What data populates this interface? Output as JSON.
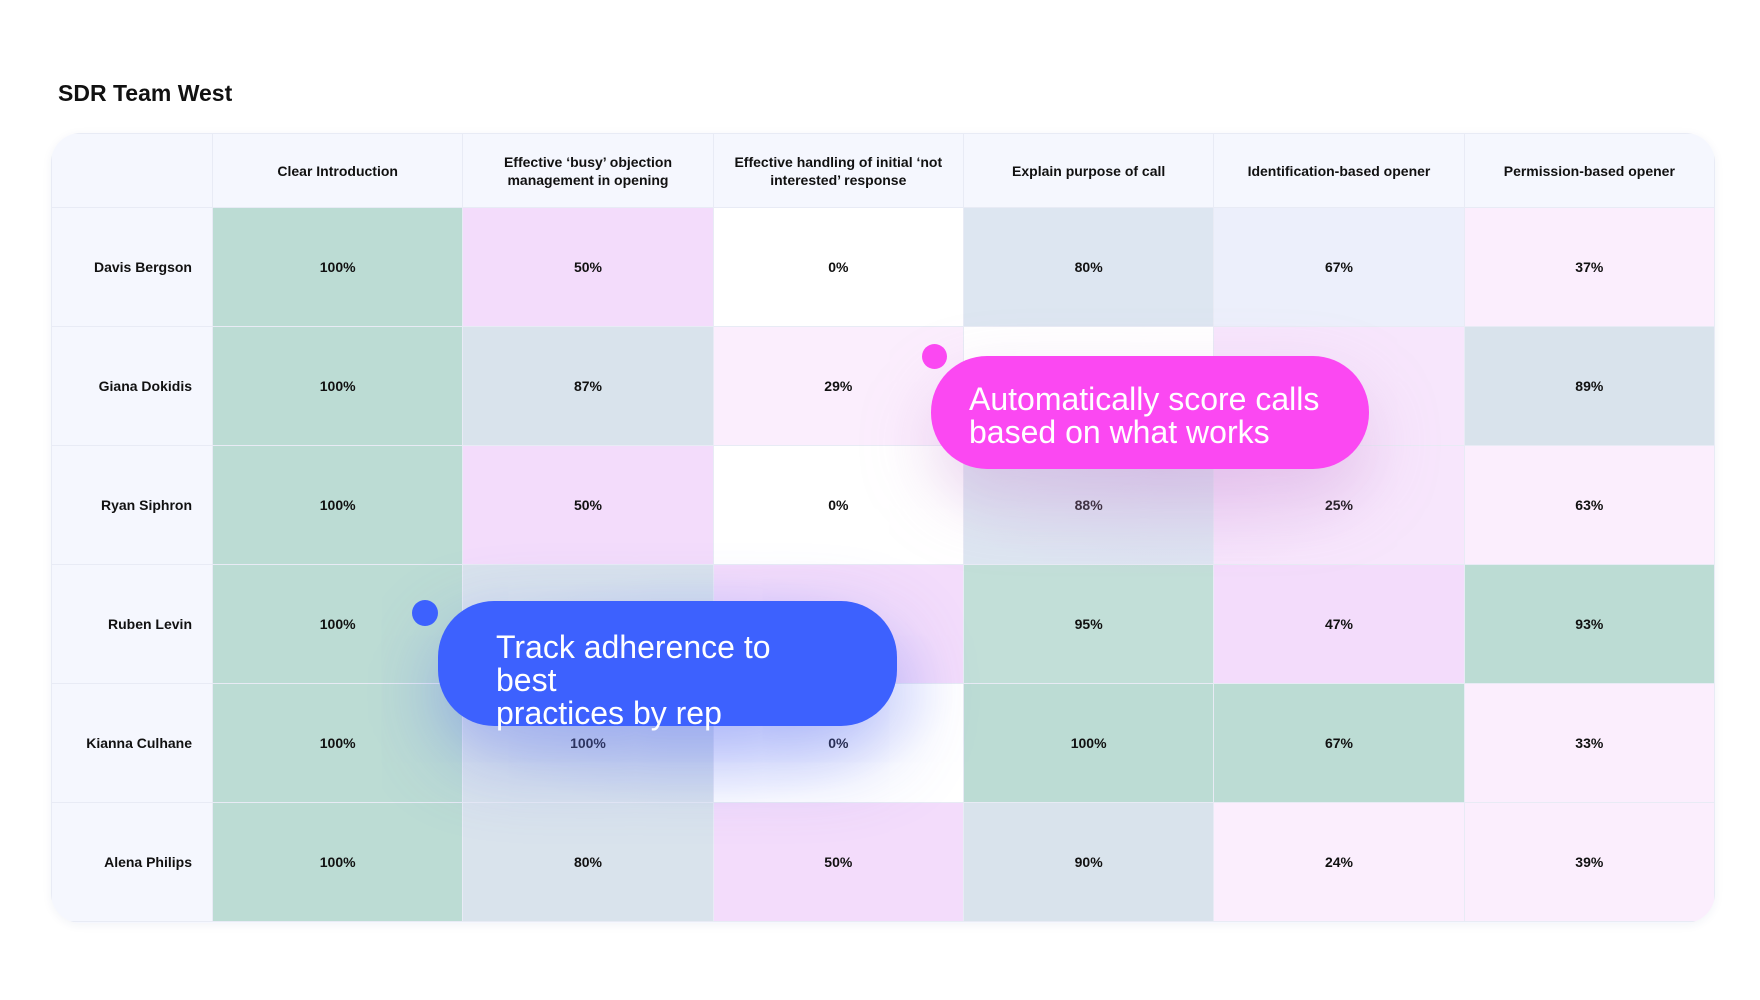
{
  "title": "SDR Team West",
  "columns": [
    "Clear Introduction",
    "Effective ‘busy’ objection management in opening",
    "Effective handling of initial ‘not interested’ response",
    "Explain purpose of call",
    "Identification-based opener",
    "Permission-based opener"
  ],
  "rows": [
    {
      "name": "Davis Bergson",
      "values": [
        "100%",
        "50%",
        "0%",
        "80%",
        "67%",
        "37%"
      ]
    },
    {
      "name": "Giana Dokidis",
      "values": [
        "100%",
        "87%",
        "29%",
        "",
        "",
        "89%"
      ]
    },
    {
      "name": "Ryan Siphron",
      "values": [
        "100%",
        "50%",
        "0%",
        "88%",
        "25%",
        "63%"
      ]
    },
    {
      "name": "Ruben Levin",
      "values": [
        "100%",
        "",
        "",
        "95%",
        "47%",
        "93%"
      ]
    },
    {
      "name": "Kianna Culhane",
      "values": [
        "100%",
        "100%",
        "0%",
        "100%",
        "67%",
        "33%"
      ]
    },
    {
      "name": "Alena Philips",
      "values": [
        "100%",
        "80%",
        "50%",
        "90%",
        "24%",
        "39%"
      ]
    }
  ],
  "callouts": {
    "pink": {
      "line1": "Automatically score calls",
      "line2": "based on what works",
      "color": "#fb48f2"
    },
    "blue": {
      "line1": "Track adherence to best",
      "line2": "practices by rep",
      "color": "#3d61fe"
    }
  }
}
